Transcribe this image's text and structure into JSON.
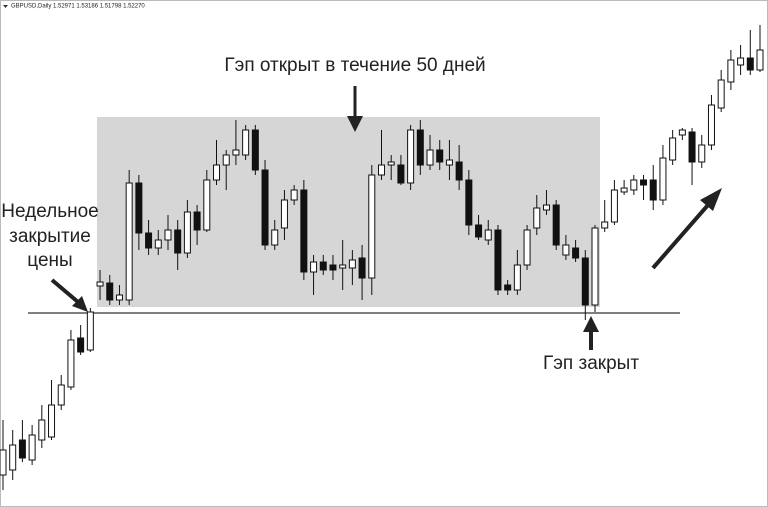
{
  "chart_data": {
    "type": "candlestick",
    "header": "GBPUSD,Daily  1.52971 1.53186 1.51798 1.52270",
    "title": "Гэп открыт в течение 50 дней",
    "left_note": [
      "Недельное",
      "закрытие",
      "цены"
    ],
    "right_note": "Гэп закрыт",
    "bull_color": "#ffffff",
    "bear_color": "#111111",
    "ohlc": [
      [
        32,
        87,
        17,
        57
      ],
      [
        37,
        77,
        27,
        62
      ],
      [
        67,
        87,
        45,
        49
      ],
      [
        47,
        82,
        42,
        72
      ],
      [
        67,
        102,
        59,
        87
      ],
      [
        70,
        127,
        67,
        102
      ],
      [
        102,
        132,
        97,
        122
      ],
      [
        120,
        177,
        117,
        167
      ],
      [
        169,
        182,
        152,
        155
      ],
      [
        157,
        199,
        155,
        195
      ],
      [
        221,
        237,
        207,
        225
      ],
      [
        224,
        232,
        202,
        207
      ],
      [
        207,
        222,
        202,
        212
      ],
      [
        207,
        337,
        202,
        324
      ],
      [
        324,
        332,
        257,
        274
      ],
      [
        274,
        287,
        252,
        259
      ],
      [
        259,
        277,
        252,
        267
      ],
      [
        267,
        292,
        257,
        277
      ],
      [
        277,
        287,
        237,
        254
      ],
      [
        254,
        307,
        249,
        295
      ],
      [
        295,
        302,
        262,
        277
      ],
      [
        277,
        337,
        275,
        327
      ],
      [
        327,
        367,
        322,
        342
      ],
      [
        342,
        357,
        317,
        352
      ],
      [
        352,
        387,
        342,
        357
      ],
      [
        352,
        382,
        347,
        377
      ],
      [
        377,
        382,
        332,
        337
      ],
      [
        337,
        347,
        257,
        262
      ],
      [
        262,
        287,
        257,
        277
      ],
      [
        279,
        317,
        267,
        307
      ],
      [
        307,
        322,
        302,
        317
      ],
      [
        317,
        327,
        227,
        235
      ],
      [
        235,
        252,
        212,
        245
      ],
      [
        245,
        252,
        232,
        237
      ],
      [
        242,
        252,
        227,
        237
      ],
      [
        239,
        267,
        217,
        242
      ],
      [
        239,
        257,
        222,
        247
      ],
      [
        249,
        262,
        207,
        229
      ],
      [
        229,
        342,
        212,
        332
      ],
      [
        332,
        377,
        327,
        342
      ],
      [
        342,
        352,
        327,
        345
      ],
      [
        342,
        352,
        322,
        324
      ],
      [
        324,
        382,
        317,
        377
      ],
      [
        377,
        387,
        332,
        342
      ],
      [
        342,
        372,
        337,
        357
      ],
      [
        357,
        367,
        337,
        345
      ],
      [
        342,
        367,
        327,
        347
      ],
      [
        345,
        362,
        317,
        327
      ],
      [
        327,
        337,
        272,
        282
      ],
      [
        282,
        292,
        267,
        270
      ],
      [
        267,
        287,
        262,
        277
      ],
      [
        277,
        282,
        212,
        217
      ],
      [
        222,
        227,
        212,
        217
      ],
      [
        217,
        257,
        212,
        242
      ],
      [
        242,
        282,
        237,
        277
      ],
      [
        279,
        312,
        272,
        299
      ],
      [
        297,
        317,
        292,
        302
      ],
      [
        302,
        307,
        257,
        262
      ],
      [
        252,
        272,
        247,
        262
      ],
      [
        259,
        267,
        245,
        249
      ],
      [
        249,
        257,
        187,
        202
      ],
      [
        202,
        282,
        195,
        279
      ],
      [
        279,
        307,
        275,
        285
      ],
      [
        285,
        327,
        282,
        317
      ],
      [
        315,
        327,
        312,
        319
      ],
      [
        317,
        332,
        312,
        327
      ],
      [
        327,
        332,
        307,
        322
      ],
      [
        327,
        342,
        297,
        307
      ],
      [
        307,
        362,
        302,
        349
      ],
      [
        347,
        377,
        342,
        369
      ],
      [
        372,
        379,
        367,
        377
      ],
      [
        375,
        379,
        322,
        345
      ],
      [
        345,
        372,
        339,
        362
      ],
      [
        362,
        412,
        357,
        402
      ],
      [
        399,
        437,
        395,
        427
      ],
      [
        425,
        457,
        417,
        447
      ],
      [
        442,
        462,
        432,
        449
      ],
      [
        449,
        477,
        432,
        437
      ],
      [
        437,
        482,
        435,
        457
      ]
    ]
  }
}
